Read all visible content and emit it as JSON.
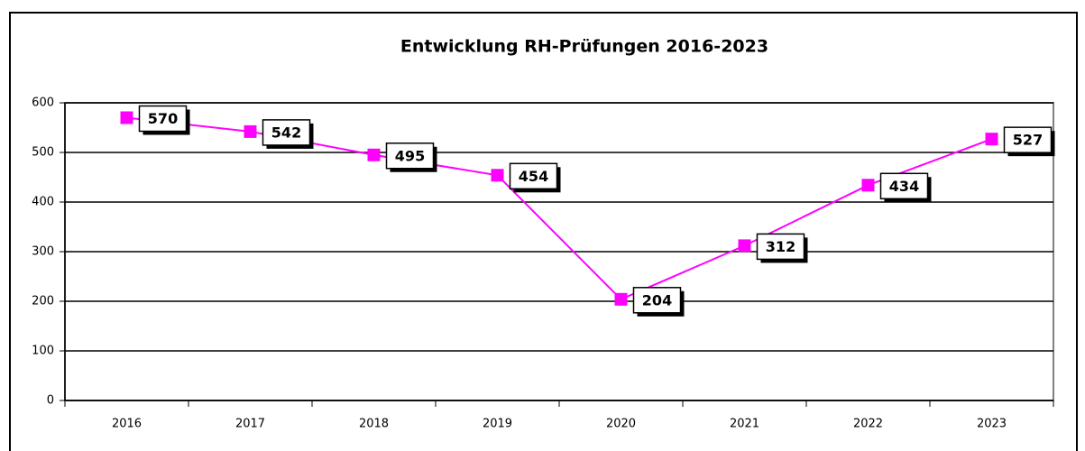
{
  "chart_data": {
    "type": "line",
    "title": "Entwicklung RH-Prüfungen 2016-2023",
    "categories": [
      "2016",
      "2017",
      "2018",
      "2019",
      "2020",
      "2021",
      "2022",
      "2023"
    ],
    "series": [
      {
        "color": "#ff00ff",
        "values": [
          570,
          542,
          495,
          454,
          204,
          312,
          434,
          527
        ]
      }
    ],
    "ylim": [
      0,
      600
    ],
    "yticks": [
      0,
      100,
      200,
      300,
      400,
      500,
      600
    ],
    "grid": true
  }
}
